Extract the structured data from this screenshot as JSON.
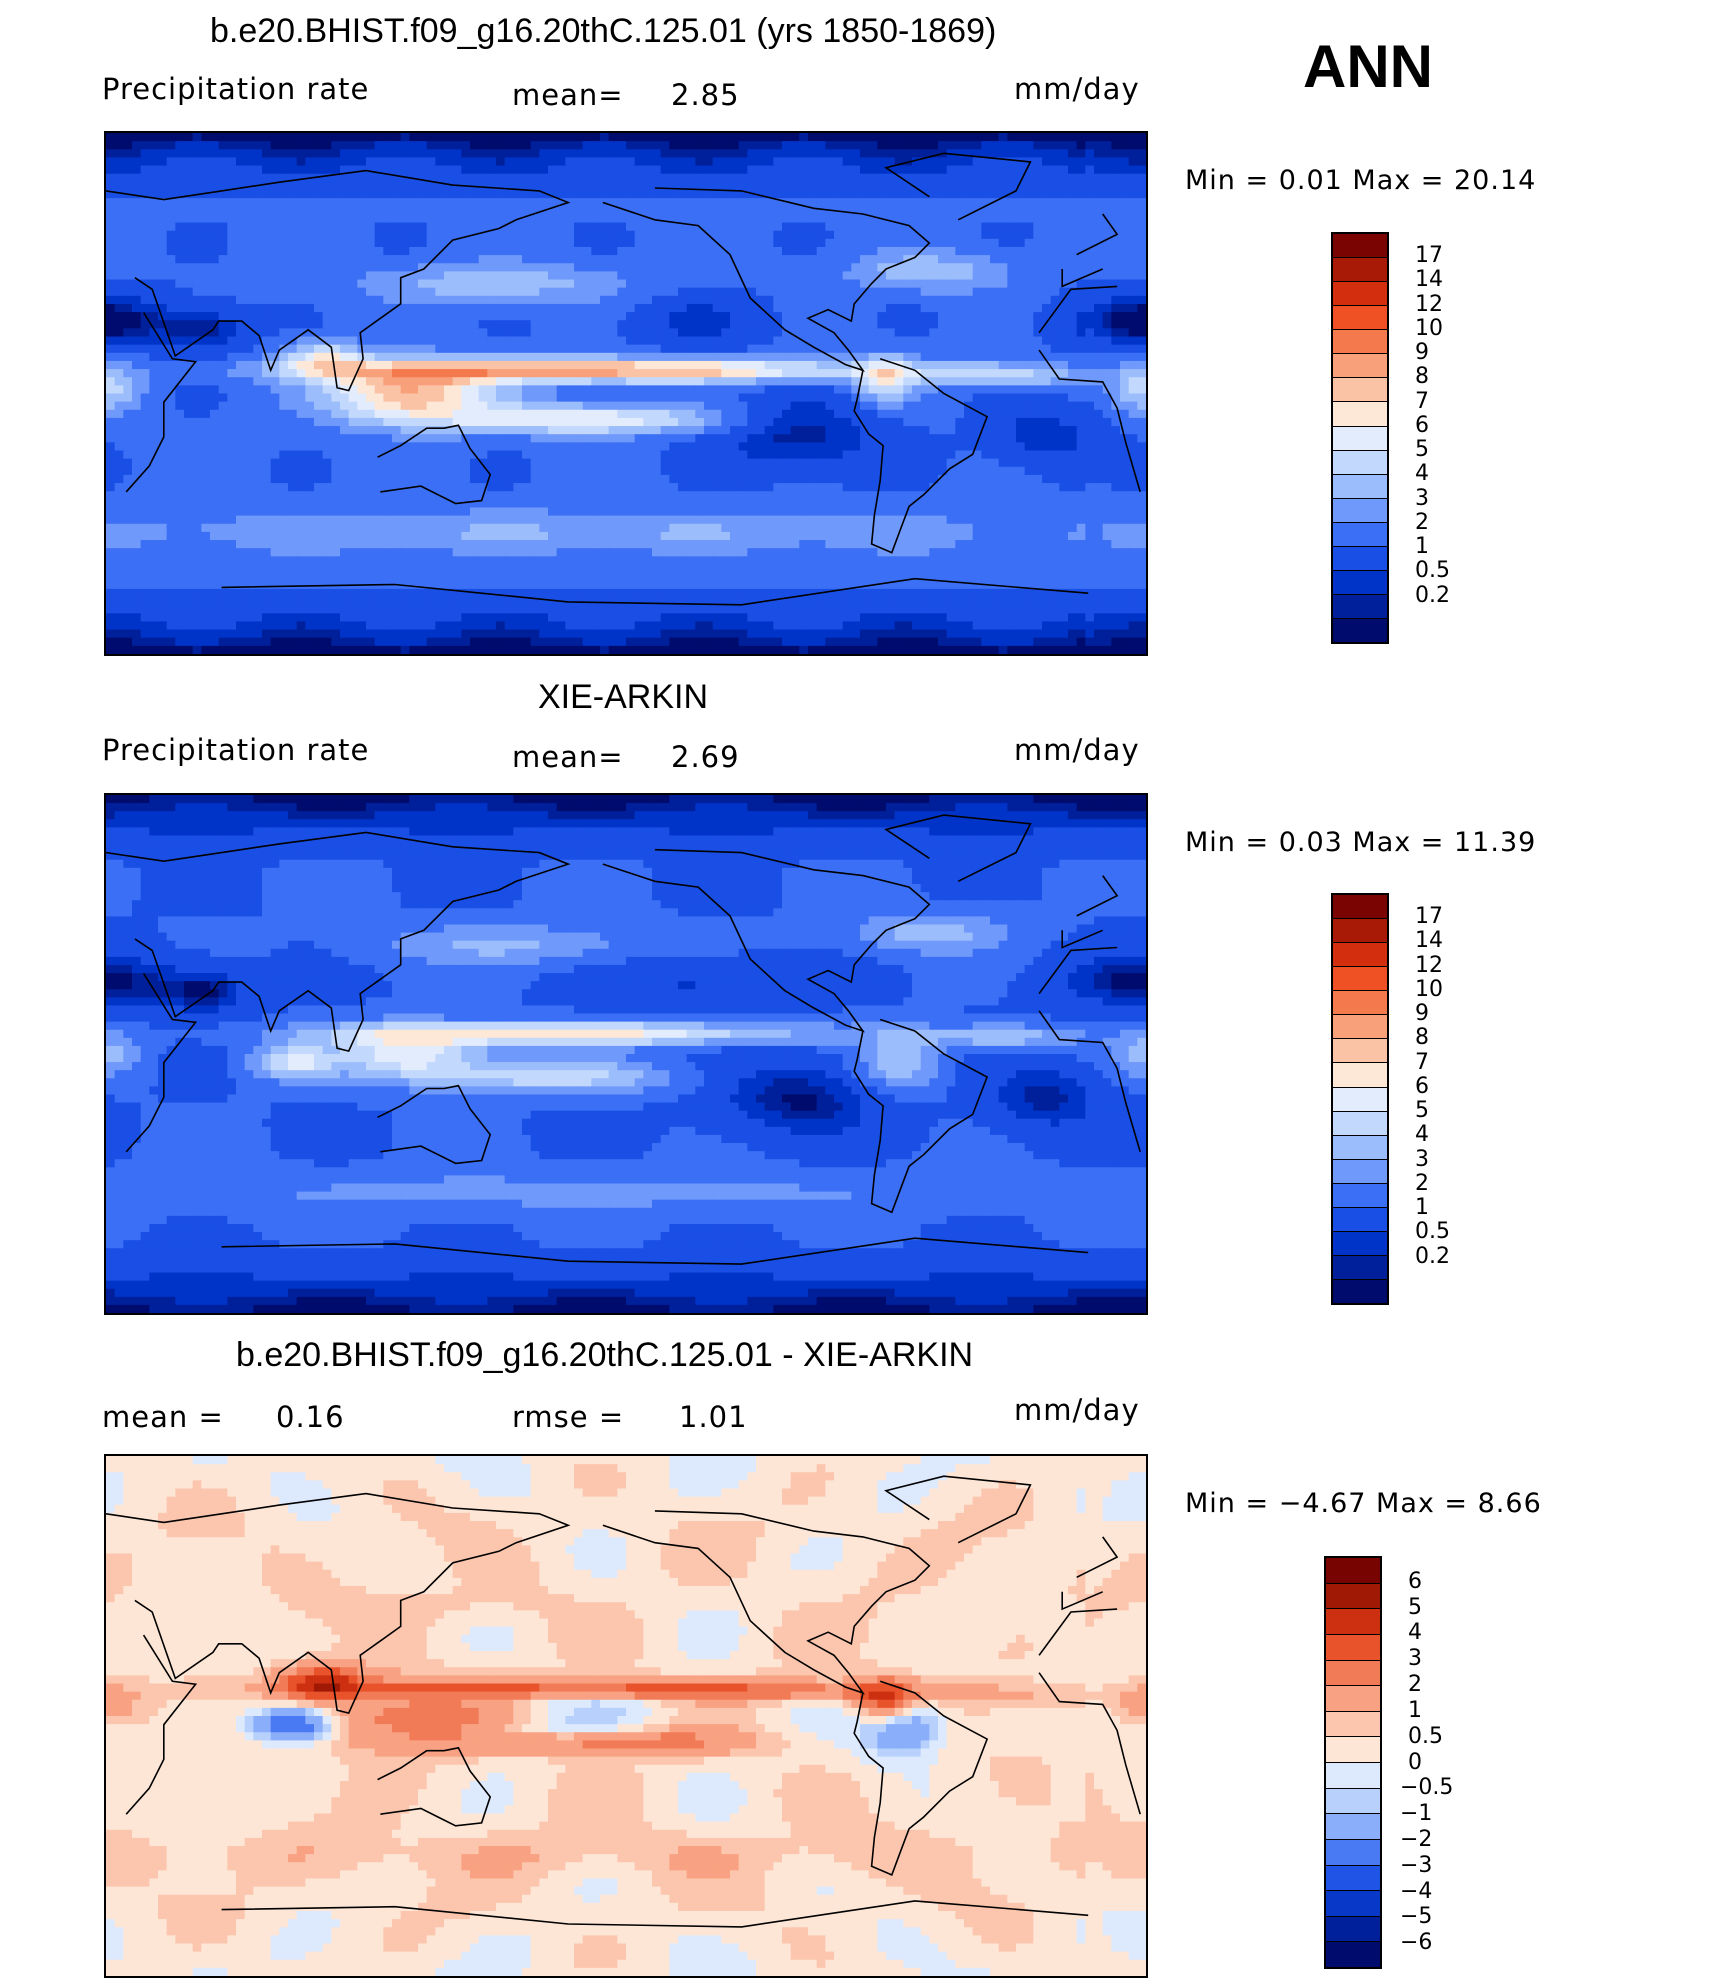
{
  "season": "ANN",
  "colors": {
    "abs_scale": [
      "#000b6e",
      "#00209b",
      "#0034c8",
      "#1a4fe6",
      "#3b6ff5",
      "#6f99fa",
      "#9cbdfb",
      "#c2d8fc",
      "#e2ecfd",
      "#fde8d8",
      "#fbc3a6",
      "#f7a07a",
      "#f47a4e",
      "#ef5024",
      "#d32f0e",
      "#a81a06",
      "#7a0402"
    ],
    "diff_scale": [
      "#000b6e",
      "#00209b",
      "#0838c8",
      "#2054e6",
      "#4a79f4",
      "#8aaef9",
      "#b7d1fc",
      "#dde9fd",
      "#fde6d6",
      "#fbc6ad",
      "#f8a283",
      "#f27b57",
      "#e9532c",
      "#cc3010",
      "#a01905",
      "#780402"
    ],
    "coast": "#000000"
  },
  "panels": [
    {
      "title": "b.e20.BHIST.f09_g16.20thC.125.01 (yrs 1850-1869)",
      "left_label": "Precipitation  rate",
      "mean_label": "mean=",
      "mean_value": "2.85",
      "units": "mm/day",
      "minmax": "Min  =      0.01  Max  =      20.14"
    },
    {
      "title": "XIE-ARKIN",
      "left_label": "Precipitation  rate",
      "mean_label": "mean=",
      "mean_value": "2.69",
      "units": "mm/day",
      "minmax": "Min  =      0.03  Max  =      11.39"
    },
    {
      "title": "b.e20.BHIST.f09_g16.20thC.125.01 - XIE-ARKIN",
      "left_label": "mean  =",
      "mean_label": "0.16",
      "rmse_label": "rmse  =",
      "rmse_value": "1.01",
      "units": "mm/day",
      "minmax": "Min  =    −4.67  Max  =      8.66"
    }
  ],
  "chart_data": [
    {
      "type": "heatmap",
      "title": "b.e20.BHIST.f09_g16.20thC.125.01 (yrs 1850-1869)",
      "variable": "Precipitation  rate",
      "units": "mm/day",
      "mean": 2.85,
      "min": 0.01,
      "max": 20.14,
      "levels": [
        "17",
        "14",
        "12",
        "10",
        "9",
        "8",
        "7",
        "6",
        "5",
        "4",
        "3",
        "2",
        "1",
        "0.5",
        "0.2"
      ]
    },
    {
      "type": "heatmap",
      "title": "XIE-ARKIN",
      "variable": "Precipitation  rate",
      "units": "mm/day",
      "mean": 2.69,
      "min": 0.03,
      "max": 11.39,
      "levels": [
        "17",
        "14",
        "12",
        "10",
        "9",
        "8",
        "7",
        "6",
        "5",
        "4",
        "3",
        "2",
        "1",
        "0.5",
        "0.2"
      ]
    },
    {
      "type": "heatmap",
      "title": "b.e20.BHIST.f09_g16.20thC.125.01 - XIE-ARKIN",
      "units": "mm/day",
      "mean": 0.16,
      "rmse": 1.01,
      "min": -4.67,
      "max": 8.66,
      "levels": [
        "6",
        "5",
        "4",
        "3",
        "2",
        "1",
        "0.5",
        "0",
        "−0.5",
        "−1",
        "−2",
        "−3",
        "−4",
        "−5",
        "−6"
      ]
    }
  ]
}
